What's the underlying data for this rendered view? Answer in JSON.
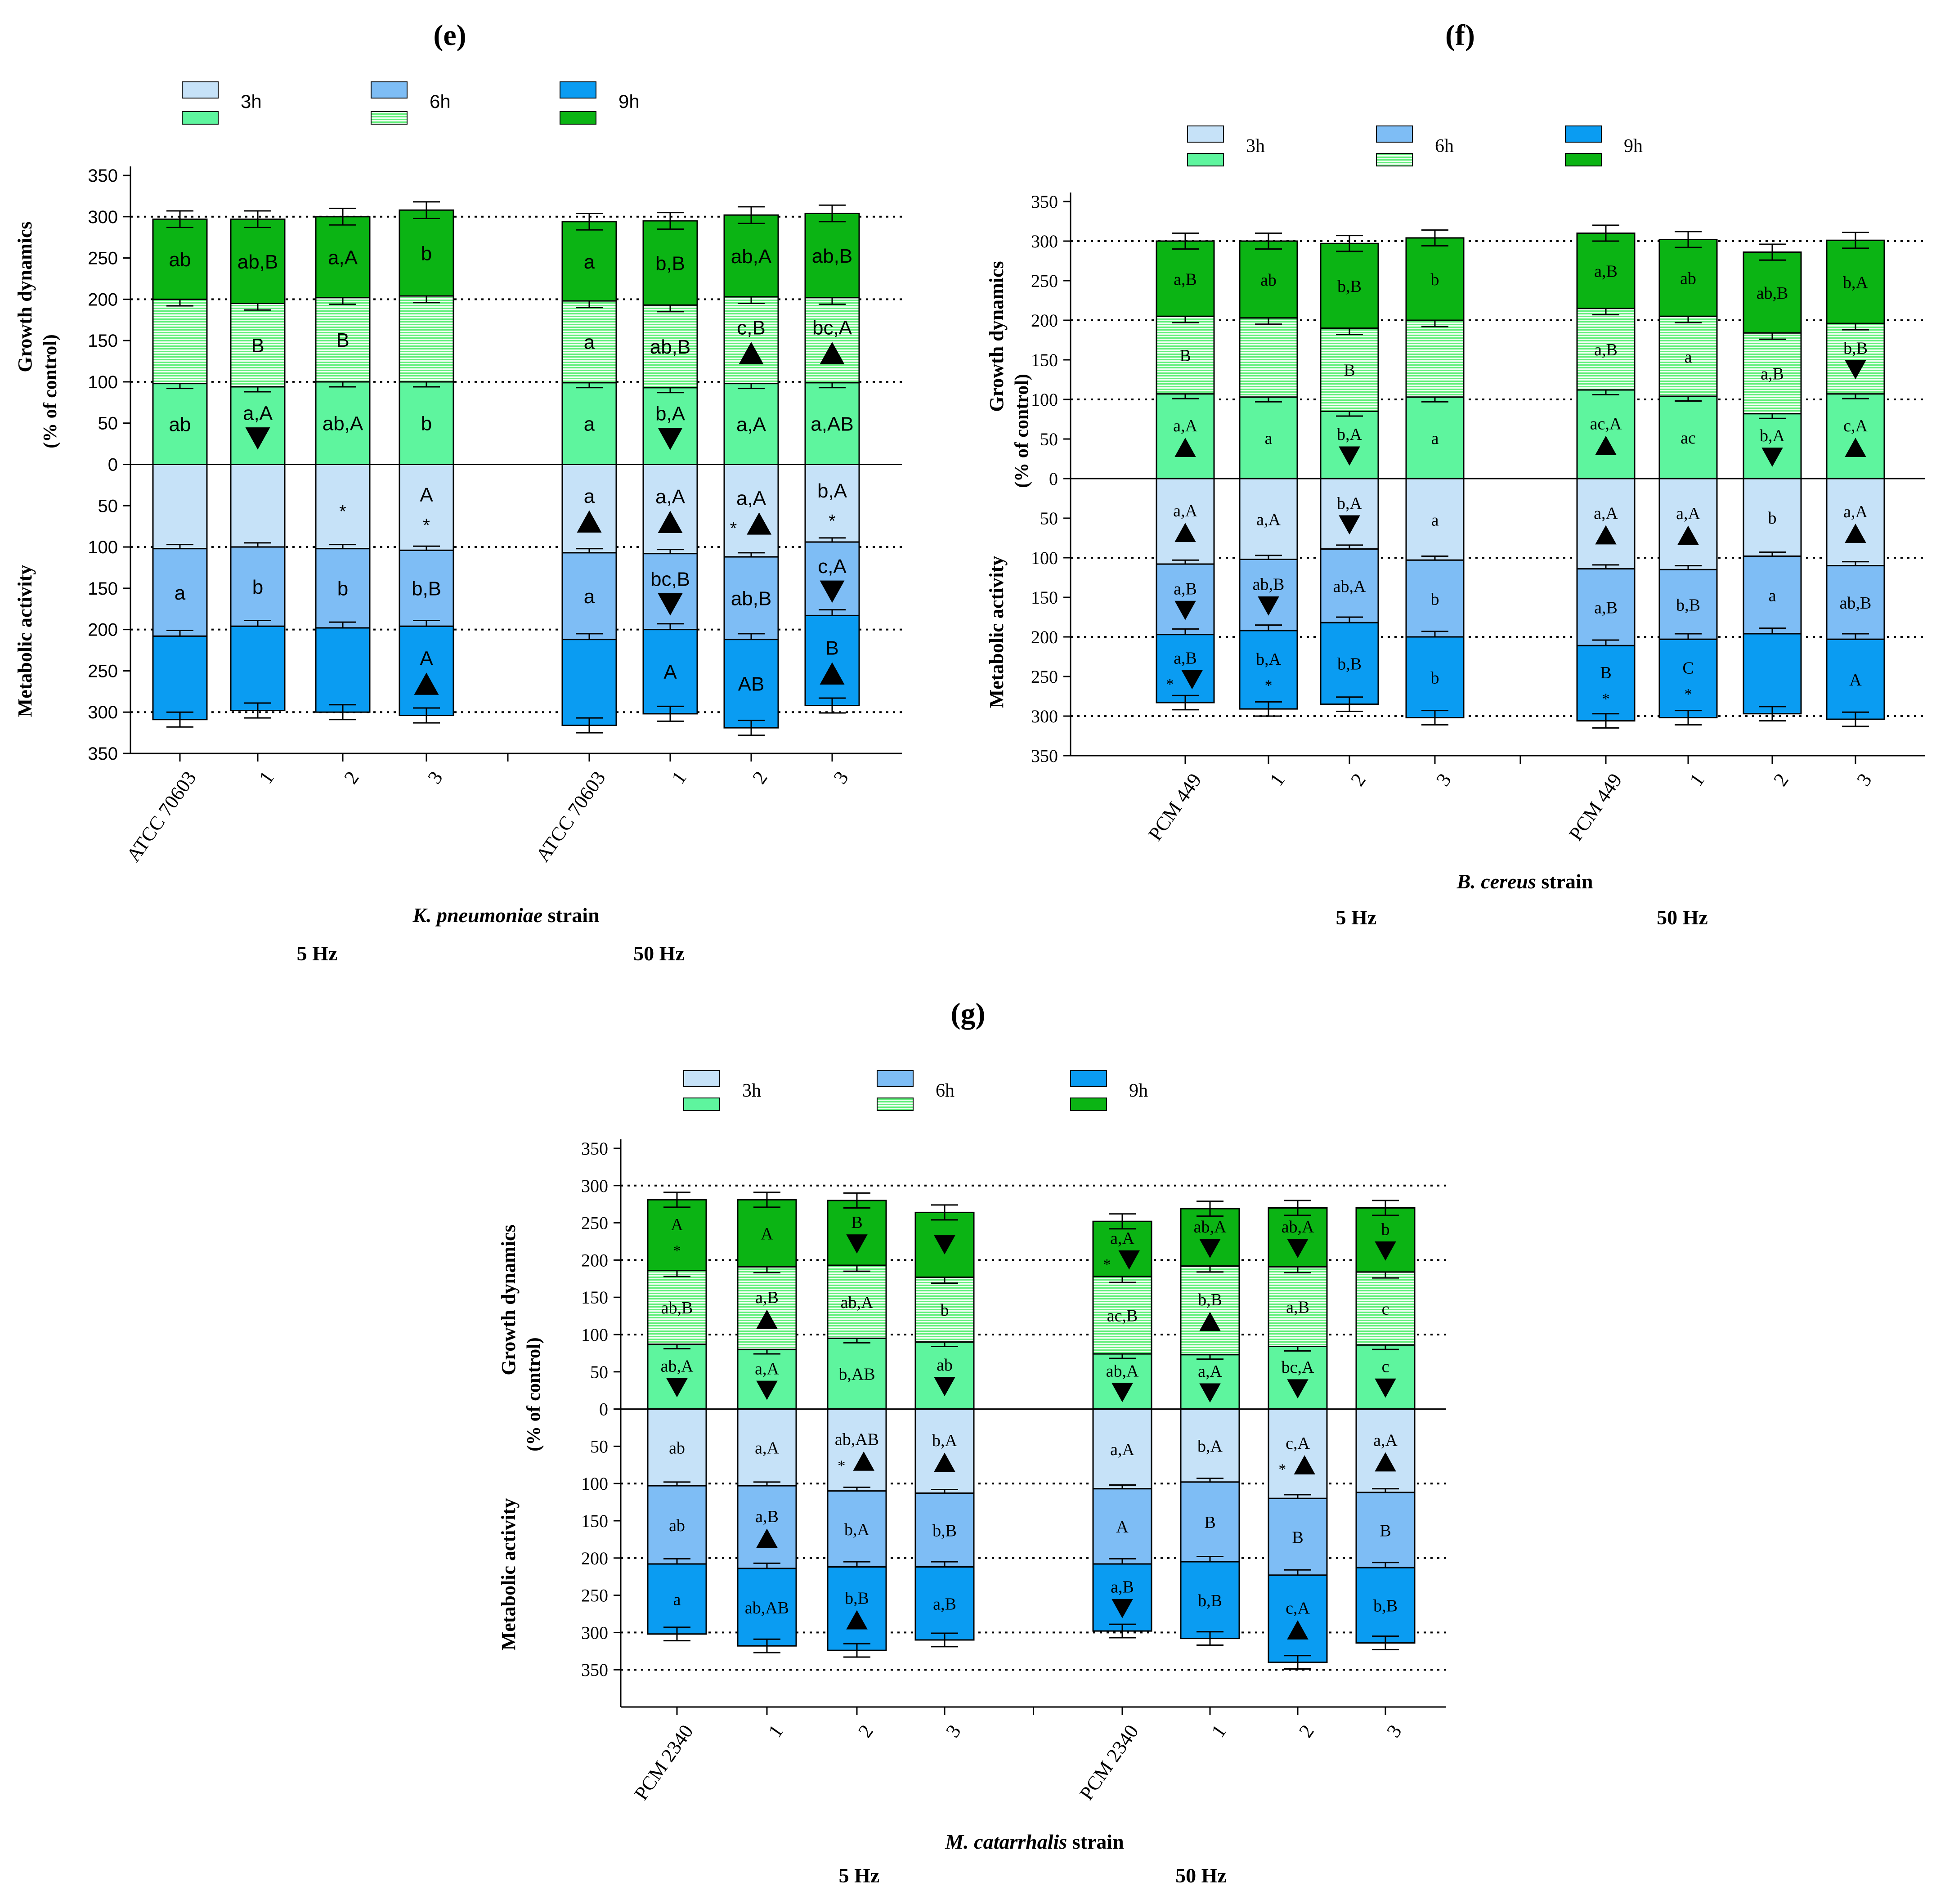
{
  "colors": {
    "c3h": "#c6e2f8",
    "c6h": "#7ebdf5",
    "c9h": "#0a9cf2",
    "g3h": "#5ef59e",
    "g6h": "#62ef7c",
    "g9h": "#0bb414",
    "stripe": "#eefdf0"
  },
  "chart_data": [
    {
      "type": "bar",
      "panel_label": "(e)",
      "font": "sans",
      "legend": {
        "labels": [
          "3h",
          "6h",
          "9h"
        ]
      },
      "ylabel_top": "Growth dynamics",
      "ylabel_mid": "(% of control)",
      "ylabel_bottom": "Metabolic activity",
      "yticks": [
        350,
        300,
        250,
        200,
        150,
        100,
        50,
        0,
        50,
        100,
        150,
        200,
        250,
        300,
        350
      ],
      "ylim": [
        -350,
        350
      ],
      "gridlines": [
        300,
        200,
        100,
        -100,
        -200,
        -300
      ],
      "x_title_italic": "K. pneumoniae",
      "x_title_rest": " strain",
      "groups": [
        "5 Hz",
        "50 Hz"
      ],
      "categories": [
        "ATCC 70603",
        "1",
        "2",
        "3",
        "ATCC 70603",
        "1",
        "2",
        "3"
      ],
      "growth": [
        {
          "v": [
            98,
            200,
            297
          ],
          "labels": [
            [
              "ab"
            ],
            [],
            [
              "ab"
            ]
          ]
        },
        {
          "v": [
            94,
            195,
            297
          ],
          "labels": [
            [
              "a,A",
              "down"
            ],
            [
              "B"
            ],
            [
              "ab,B"
            ]
          ]
        },
        {
          "v": [
            100,
            202,
            300
          ],
          "labels": [
            [
              "ab,A"
            ],
            [
              "B"
            ],
            [
              "a,A"
            ]
          ]
        },
        {
          "v": [
            100,
            204,
            308
          ],
          "labels": [
            [
              "b"
            ],
            [],
            [
              "b"
            ]
          ]
        },
        {
          "v": [
            99,
            198,
            294
          ],
          "labels": [
            [
              "a"
            ],
            [
              "a"
            ],
            [
              "a"
            ]
          ]
        },
        {
          "v": [
            93,
            193,
            295
          ],
          "labels": [
            [
              "b,A",
              "down"
            ],
            [
              "ab,B"
            ],
            [
              "b,B"
            ]
          ]
        },
        {
          "v": [
            98,
            203,
            302
          ],
          "labels": [
            [
              "a,A"
            ],
            [
              "c,B",
              "up"
            ],
            [
              "ab,A"
            ]
          ]
        },
        {
          "v": [
            99,
            202,
            304
          ],
          "labels": [
            [
              "a,AB"
            ],
            [
              "bc,A",
              "up"
            ],
            [
              "ab,B"
            ]
          ]
        }
      ],
      "metabolic": [
        {
          "v": [
            102,
            208,
            309
          ],
          "labels": [
            [],
            [
              "a"
            ],
            []
          ]
        },
        {
          "v": [
            100,
            196,
            298
          ],
          "labels": [
            [],
            [
              "b"
            ],
            []
          ]
        },
        {
          "v": [
            102,
            198,
            300
          ],
          "labels": [
            [
              "*"
            ],
            [
              "b"
            ],
            []
          ]
        },
        {
          "v": [
            104,
            196,
            304
          ],
          "labels": [
            [
              "A",
              "*"
            ],
            [
              "b,B"
            ],
            [
              "A",
              "up"
            ]
          ]
        },
        {
          "v": [
            107,
            212,
            316
          ],
          "labels": [
            [
              "a",
              "up"
            ],
            [
              "a"
            ],
            []
          ]
        },
        {
          "v": [
            108,
            200,
            302
          ],
          "labels": [
            [
              "a,A",
              "up"
            ],
            [
              "bc,B",
              "down"
            ],
            [
              "A"
            ]
          ]
        },
        {
          "v": [
            112,
            212,
            319
          ],
          "labels": [
            [
              "a,A",
              "* up"
            ],
            [
              "ab,B"
            ],
            [
              "AB"
            ]
          ]
        },
        {
          "v": [
            94,
            183,
            292
          ],
          "labels": [
            [
              "b,A",
              "*"
            ],
            [
              "c,A",
              "down"
            ],
            [
              "B",
              "up"
            ]
          ]
        }
      ]
    },
    {
      "type": "bar",
      "panel_label": "(f)",
      "font": "serif",
      "legend": {
        "labels": [
          "3h",
          "6h",
          "9h"
        ]
      },
      "ylabel_top": "Growth dynamics",
      "ylabel_mid": "(% of control)",
      "ylabel_bottom": "Metabolic activity",
      "yticks": [
        350,
        300,
        250,
        200,
        150,
        100,
        50,
        0,
        50,
        100,
        150,
        200,
        250,
        300,
        350
      ],
      "ylim": [
        -350,
        350
      ],
      "gridlines": [
        300,
        200,
        100,
        -100,
        -200,
        -300
      ],
      "x_title_italic": "B. cereus",
      "x_title_rest": " strain",
      "groups": [
        "5 Hz",
        "50 Hz"
      ],
      "categories": [
        "PCM 449",
        "1",
        "2",
        "3",
        "PCM 449",
        "1",
        "2",
        "3"
      ],
      "growth": [
        {
          "v": [
            107,
            205,
            300
          ],
          "labels": [
            [
              "a,A",
              "up"
            ],
            [
              "B"
            ],
            [
              "a,B"
            ]
          ]
        },
        {
          "v": [
            103,
            203,
            300
          ],
          "labels": [
            [
              "a"
            ],
            [],
            [
              "ab"
            ]
          ]
        },
        {
          "v": [
            85,
            190,
            297
          ],
          "labels": [
            [
              "b,A",
              "down"
            ],
            [
              "B"
            ],
            [
              "b,B"
            ]
          ]
        },
        {
          "v": [
            103,
            200,
            304
          ],
          "labels": [
            [
              "a"
            ],
            [],
            [
              "b"
            ]
          ]
        },
        {
          "v": [
            112,
            215,
            310
          ],
          "labels": [
            [
              "ac,A",
              "up"
            ],
            [
              "a,B"
            ],
            [
              "a,B"
            ]
          ]
        },
        {
          "v": [
            104,
            205,
            302
          ],
          "labels": [
            [
              "ac"
            ],
            [
              "a"
            ],
            [
              "ab"
            ]
          ]
        },
        {
          "v": [
            82,
            184,
            286
          ],
          "labels": [
            [
              "b,A",
              "down"
            ],
            [
              "a,B"
            ],
            [
              "ab,B"
            ]
          ]
        },
        {
          "v": [
            107,
            196,
            301
          ],
          "labels": [
            [
              "c,A",
              "up"
            ],
            [
              "b,B",
              "down"
            ],
            [
              "b,A"
            ]
          ]
        }
      ],
      "metabolic": [
        {
          "v": [
            108,
            197,
            283
          ],
          "labels": [
            [
              "a,A",
              "up"
            ],
            [
              "a,B",
              "down"
            ],
            [
              "a,B",
              "* down"
            ]
          ]
        },
        {
          "v": [
            102,
            192,
            291
          ],
          "labels": [
            [
              "a,A"
            ],
            [
              "ab,B",
              "down"
            ],
            [
              "b,A",
              "*"
            ]
          ]
        },
        {
          "v": [
            89,
            182,
            285
          ],
          "labels": [
            [
              "b,A",
              "down"
            ],
            [
              "ab,A"
            ],
            [
              "b,B"
            ]
          ]
        },
        {
          "v": [
            103,
            200,
            302
          ],
          "labels": [
            [
              "a"
            ],
            [
              "b"
            ],
            [
              "b"
            ]
          ]
        },
        {
          "v": [
            114,
            211,
            306
          ],
          "labels": [
            [
              "a,A",
              "up"
            ],
            [
              "a,B"
            ],
            [
              "B",
              "*"
            ]
          ]
        },
        {
          "v": [
            115,
            203,
            302
          ],
          "labels": [
            [
              "a,A",
              "up"
            ],
            [
              "b,B"
            ],
            [
              "C",
              "*"
            ]
          ]
        },
        {
          "v": [
            98,
            196,
            297
          ],
          "labels": [
            [
              "b"
            ],
            [
              "a"
            ],
            []
          ]
        },
        {
          "v": [
            110,
            203,
            304
          ],
          "labels": [
            [
              "a,A",
              "up"
            ],
            [
              "ab,B"
            ],
            [
              "A"
            ]
          ]
        }
      ]
    },
    {
      "type": "bar",
      "panel_label": "(g)",
      "font": "serif",
      "legend": {
        "labels": [
          "3h",
          "6h",
          "9h"
        ]
      },
      "ylabel_top": "Growth dynamics",
      "ylabel_mid": "(% of control)",
      "ylabel_bottom": "Metabolic activity",
      "yticks": [
        350,
        300,
        250,
        200,
        150,
        100,
        50,
        0,
        50,
        100,
        150,
        200,
        250,
        300,
        350
      ],
      "ylim": [
        -400,
        350
      ],
      "gridlines": [
        300,
        200,
        100,
        -100,
        -200,
        -300,
        -350
      ],
      "x_title_italic": "M. catarrhalis",
      "x_title_rest": "  strain",
      "groups": [
        "5 Hz",
        "50 Hz"
      ],
      "categories": [
        "PCM 2340",
        "1",
        "2",
        "3",
        "PCM 2340",
        "1",
        "2",
        "3"
      ],
      "growth": [
        {
          "v": [
            87,
            186,
            281
          ],
          "labels": [
            [
              "ab,A",
              "down"
            ],
            [
              "ab,B"
            ],
            [
              "A",
              "*"
            ]
          ]
        },
        {
          "v": [
            80,
            191,
            281
          ],
          "labels": [
            [
              "a,A",
              "down"
            ],
            [
              "a,B",
              "up"
            ],
            [
              "A"
            ]
          ]
        },
        {
          "v": [
            95,
            193,
            280
          ],
          "labels": [
            [
              "b,AB"
            ],
            [
              "ab,A"
            ],
            [
              "B",
              "down"
            ]
          ]
        },
        {
          "v": [
            90,
            177,
            264
          ],
          "labels": [
            [
              "ab",
              "down"
            ],
            [
              "b"
            ],
            [
              "down"
            ]
          ]
        },
        {
          "v": [
            74,
            178,
            252
          ],
          "labels": [
            [
              "ab,A",
              "down"
            ],
            [
              "ac,B"
            ],
            [
              "a,A",
              "* down"
            ]
          ]
        },
        {
          "v": [
            73,
            192,
            269
          ],
          "labels": [
            [
              "a,A",
              "down"
            ],
            [
              "b,B",
              "up"
            ],
            [
              "ab,A",
              "down"
            ]
          ]
        },
        {
          "v": [
            84,
            191,
            270
          ],
          "labels": [
            [
              "bc,A",
              "down"
            ],
            [
              "a,B"
            ],
            [
              "ab,A",
              "down"
            ]
          ]
        },
        {
          "v": [
            86,
            184,
            270
          ],
          "labels": [
            [
              "c",
              "down"
            ],
            [
              "c"
            ],
            [
              "b",
              "down"
            ]
          ]
        }
      ],
      "metabolic": [
        {
          "v": [
            103,
            208,
            302
          ],
          "labels": [
            [
              "ab"
            ],
            [
              "ab"
            ],
            [
              "a"
            ]
          ]
        },
        {
          "v": [
            103,
            214,
            318
          ],
          "labels": [
            [
              "a,A"
            ],
            [
              "a,B",
              "up"
            ],
            [
              "ab,AB"
            ]
          ]
        },
        {
          "v": [
            110,
            212,
            324
          ],
          "labels": [
            [
              "ab,AB",
              "* up"
            ],
            [
              "b,A"
            ],
            [
              "b,B",
              "up"
            ]
          ]
        },
        {
          "v": [
            113,
            212,
            310
          ],
          "labels": [
            [
              "b,A",
              "up"
            ],
            [
              "b,B"
            ],
            [
              "a,B"
            ]
          ]
        },
        {
          "v": [
            107,
            208,
            298
          ],
          "labels": [
            [
              "a,A"
            ],
            [
              "A"
            ],
            [
              "a,B",
              "down"
            ]
          ]
        },
        {
          "v": [
            98,
            205,
            308
          ],
          "labels": [
            [
              "b,A"
            ],
            [
              "B"
            ],
            [
              "b,B"
            ]
          ]
        },
        {
          "v": [
            120,
            223,
            340
          ],
          "labels": [
            [
              "c,A",
              "* up"
            ],
            [
              "B"
            ],
            [
              "c,A",
              "up"
            ]
          ]
        },
        {
          "v": [
            112,
            213,
            314
          ],
          "labels": [
            [
              "a,A",
              "up"
            ],
            [
              "B"
            ],
            [
              "b,B"
            ]
          ]
        }
      ]
    }
  ]
}
